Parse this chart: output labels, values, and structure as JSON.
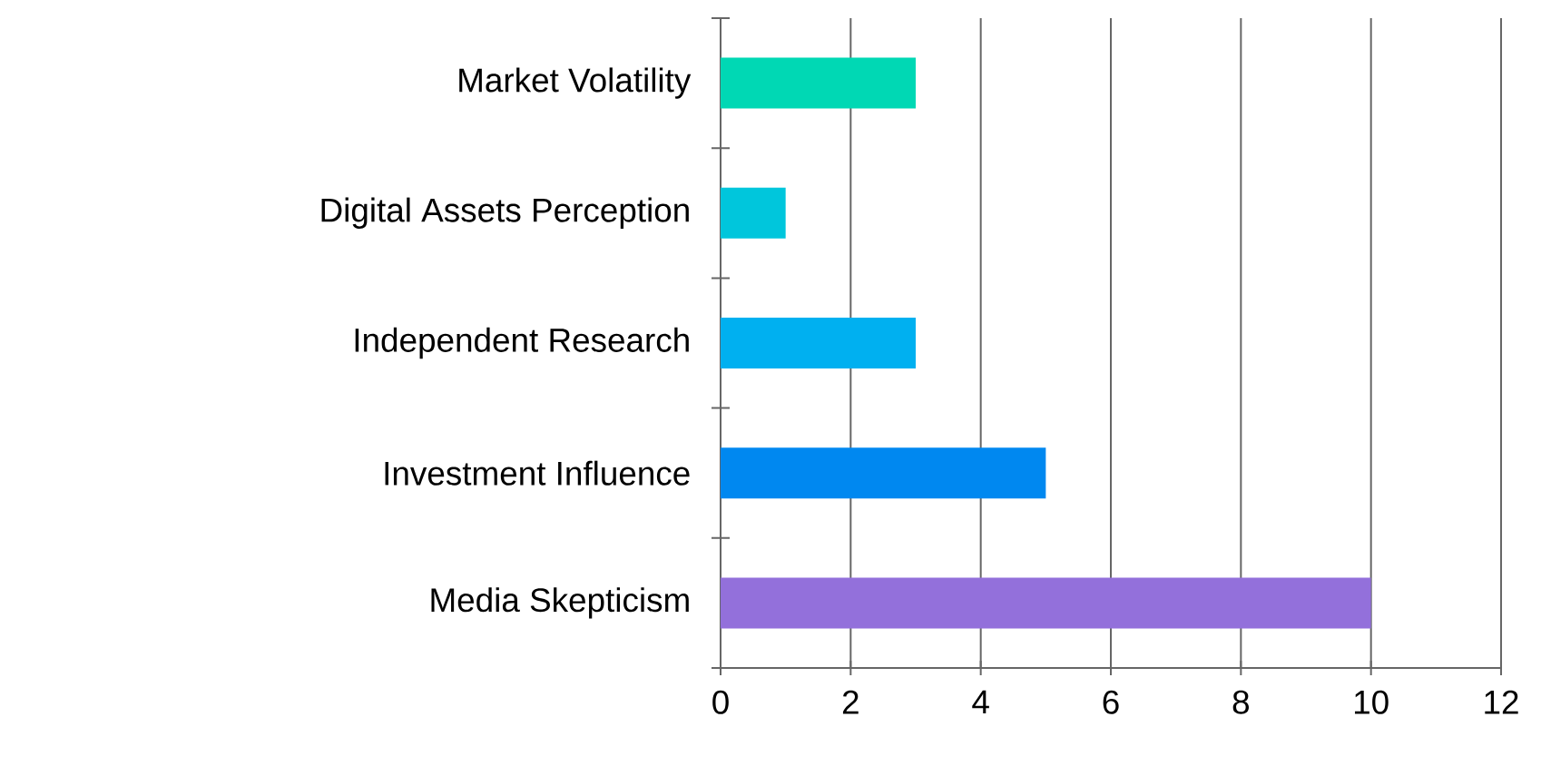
{
  "chart_data": {
    "type": "bar",
    "orientation": "horizontal",
    "categories": [
      "Market Volatility",
      "Digital Assets Perception",
      "Independent Research",
      "Investment Influence",
      "Media Skepticism"
    ],
    "values": [
      3,
      1,
      3,
      5,
      10
    ],
    "colors": [
      "#00d8b4",
      "#00c6dc",
      "#00b0f0",
      "#0088f0",
      "#9370db"
    ],
    "xlim": [
      0,
      12
    ],
    "xticks": [
      0,
      2,
      4,
      6,
      8,
      10,
      12
    ],
    "grid": "x"
  }
}
